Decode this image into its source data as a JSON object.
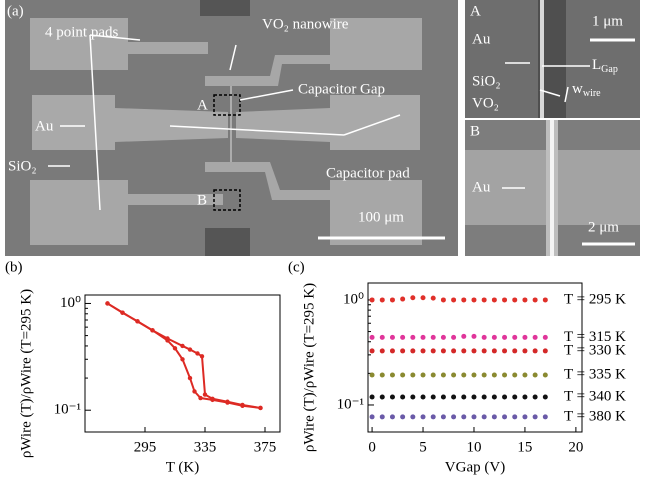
{
  "figure_a": {
    "label": "(a)",
    "pads": "4 point pads",
    "nanowire": "VO₂ nanowire",
    "gap": "Capacitor Gap",
    "box_a": "A",
    "box_b": "B",
    "au": "Au",
    "sio2": "SiO₂",
    "cap_pad": "Capacitor pad",
    "scale": "100 μm"
  },
  "inset_a": {
    "label": "A",
    "scale": "1 μm",
    "au": "Au",
    "sio2": "SiO₂",
    "vo2": "VO₂",
    "l_main": "L",
    "l_sub": "Gap",
    "w_main": "w",
    "w_sub": "wire"
  },
  "inset_b": {
    "label": "B",
    "au": "Au",
    "scale": "2 μm"
  },
  "chart_data": [
    {
      "type": "line",
      "panel": "(b)",
      "x_label": "T (K)",
      "y_label": "ρWire (T)/ρWire (T=295 K)",
      "log_y": true,
      "xlim": [
        255,
        385
      ],
      "xticks": [
        295,
        335,
        375
      ],
      "ylim": [
        0.0625,
        1.2
      ],
      "yticks": [
        {
          "value": 1,
          "label": "10⁰"
        },
        {
          "value": 0.1,
          "label": "10⁻¹"
        }
      ],
      "series": [
        {
          "color": "#dd2a24",
          "x": [
            270,
            280,
            290,
            300,
            310,
            320,
            325,
            330,
            333,
            335,
            340,
            350,
            360,
            372
          ],
          "values": [
            1.0,
            0.82,
            0.68,
            0.56,
            0.47,
            0.4,
            0.37,
            0.34,
            0.32,
            0.14,
            0.128,
            0.12,
            0.112,
            0.105
          ]
        },
        {
          "color": "#dd2a24",
          "x": [
            270,
            280,
            290,
            300,
            310,
            315,
            320,
            325,
            328,
            332,
            340,
            350,
            360,
            372
          ],
          "values": [
            1.0,
            0.82,
            0.68,
            0.56,
            0.45,
            0.38,
            0.3,
            0.2,
            0.15,
            0.13,
            0.125,
            0.118,
            0.11,
            0.105
          ]
        }
      ]
    },
    {
      "type": "scatter",
      "panel": "(c)",
      "x_label": "VGap (V)",
      "y_label": "ρWire (T)/ρWire (T=295 K)",
      "log_y": true,
      "xlim": [
        -0.4,
        20.6
      ],
      "xticks": [
        0,
        5,
        10,
        15,
        20
      ],
      "ylim": [
        0.0553,
        1.45
      ],
      "yticks": [
        {
          "value": 1,
          "label": "10⁰"
        },
        {
          "value": 0.1,
          "label": "10⁻¹"
        }
      ],
      "x": [
        0,
        1,
        2,
        3,
        4,
        5,
        6,
        7,
        8,
        9,
        10,
        11,
        12,
        13,
        14,
        15,
        16,
        17
      ],
      "series": [
        {
          "name": "T = 295 K",
          "color": "#e0302a",
          "values": [
            1,
            1,
            1,
            1.02,
            1.05,
            1.05,
            1.04,
            1,
            1,
            1,
            1,
            1,
            1,
            1,
            1,
            1,
            1,
            1
          ]
        },
        {
          "name": "T = 315 K",
          "color": "#e0359a",
          "values": [
            0.44,
            0.44,
            0.44,
            0.44,
            0.44,
            0.44,
            0.44,
            0.44,
            0.44,
            0.45,
            0.45,
            0.44,
            0.44,
            0.44,
            0.44,
            0.44,
            0.44,
            0.44
          ]
        },
        {
          "name": "T = 330 K",
          "color": "#d42828",
          "values": [
            0.327,
            0.327,
            0.327,
            0.327,
            0.327,
            0.327,
            0.327,
            0.327,
            0.327,
            0.327,
            0.327,
            0.327,
            0.327,
            0.327,
            0.327,
            0.327,
            0.327,
            0.327
          ]
        },
        {
          "name": "T = 335 K",
          "color": "#8a8a30",
          "values": [
            0.193,
            0.193,
            0.193,
            0.193,
            0.193,
            0.193,
            0.193,
            0.193,
            0.193,
            0.193,
            0.193,
            0.193,
            0.193,
            0.193,
            0.193,
            0.193,
            0.193,
            0.193
          ]
        },
        {
          "name": "T = 340 K",
          "color": "#111111",
          "values": [
            0.119,
            0.119,
            0.119,
            0.119,
            0.119,
            0.119,
            0.119,
            0.119,
            0.119,
            0.119,
            0.119,
            0.119,
            0.119,
            0.119,
            0.119,
            0.119,
            0.119,
            0.119
          ]
        },
        {
          "name": "T = 380 K",
          "color": "#6a5aa8",
          "values": [
            0.077,
            0.077,
            0.077,
            0.077,
            0.077,
            0.077,
            0.077,
            0.077,
            0.077,
            0.077,
            0.077,
            0.077,
            0.077,
            0.077,
            0.077,
            0.077,
            0.077,
            0.077
          ]
        }
      ]
    }
  ]
}
